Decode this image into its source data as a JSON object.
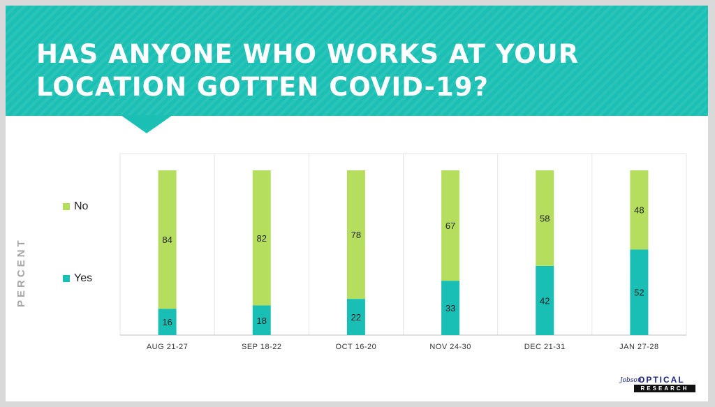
{
  "slide": {
    "title_line1": "HAS ANYONE WHO WORKS AT YOUR",
    "title_line2": "LOCATION GOTTEN COVID-19?"
  },
  "chart_data": {
    "type": "bar",
    "stacked": true,
    "title": "HAS ANYONE WHO WORKS AT YOUR LOCATION GOTTEN COVID-19?",
    "xlabel": "",
    "ylabel": "PERCENT",
    "ylim": [
      0,
      100
    ],
    "grid": false,
    "legend": "left",
    "categories": [
      "AUG 21-27",
      "SEP 18-22",
      "OCT 16-20",
      "NOV 24-30",
      "DEC 21-31",
      "JAN 27-28"
    ],
    "series": [
      {
        "name": "Yes",
        "color": "#19bfb4",
        "values": [
          16,
          18,
          22,
          33,
          42,
          52
        ]
      },
      {
        "name": "No",
        "color": "#b5dd5e",
        "values": [
          84,
          82,
          78,
          67,
          58,
          48
        ]
      }
    ]
  },
  "logo": {
    "script_text": "Jobson",
    "top_text": "OPTICAL",
    "bottom_text": "RESEARCH"
  }
}
